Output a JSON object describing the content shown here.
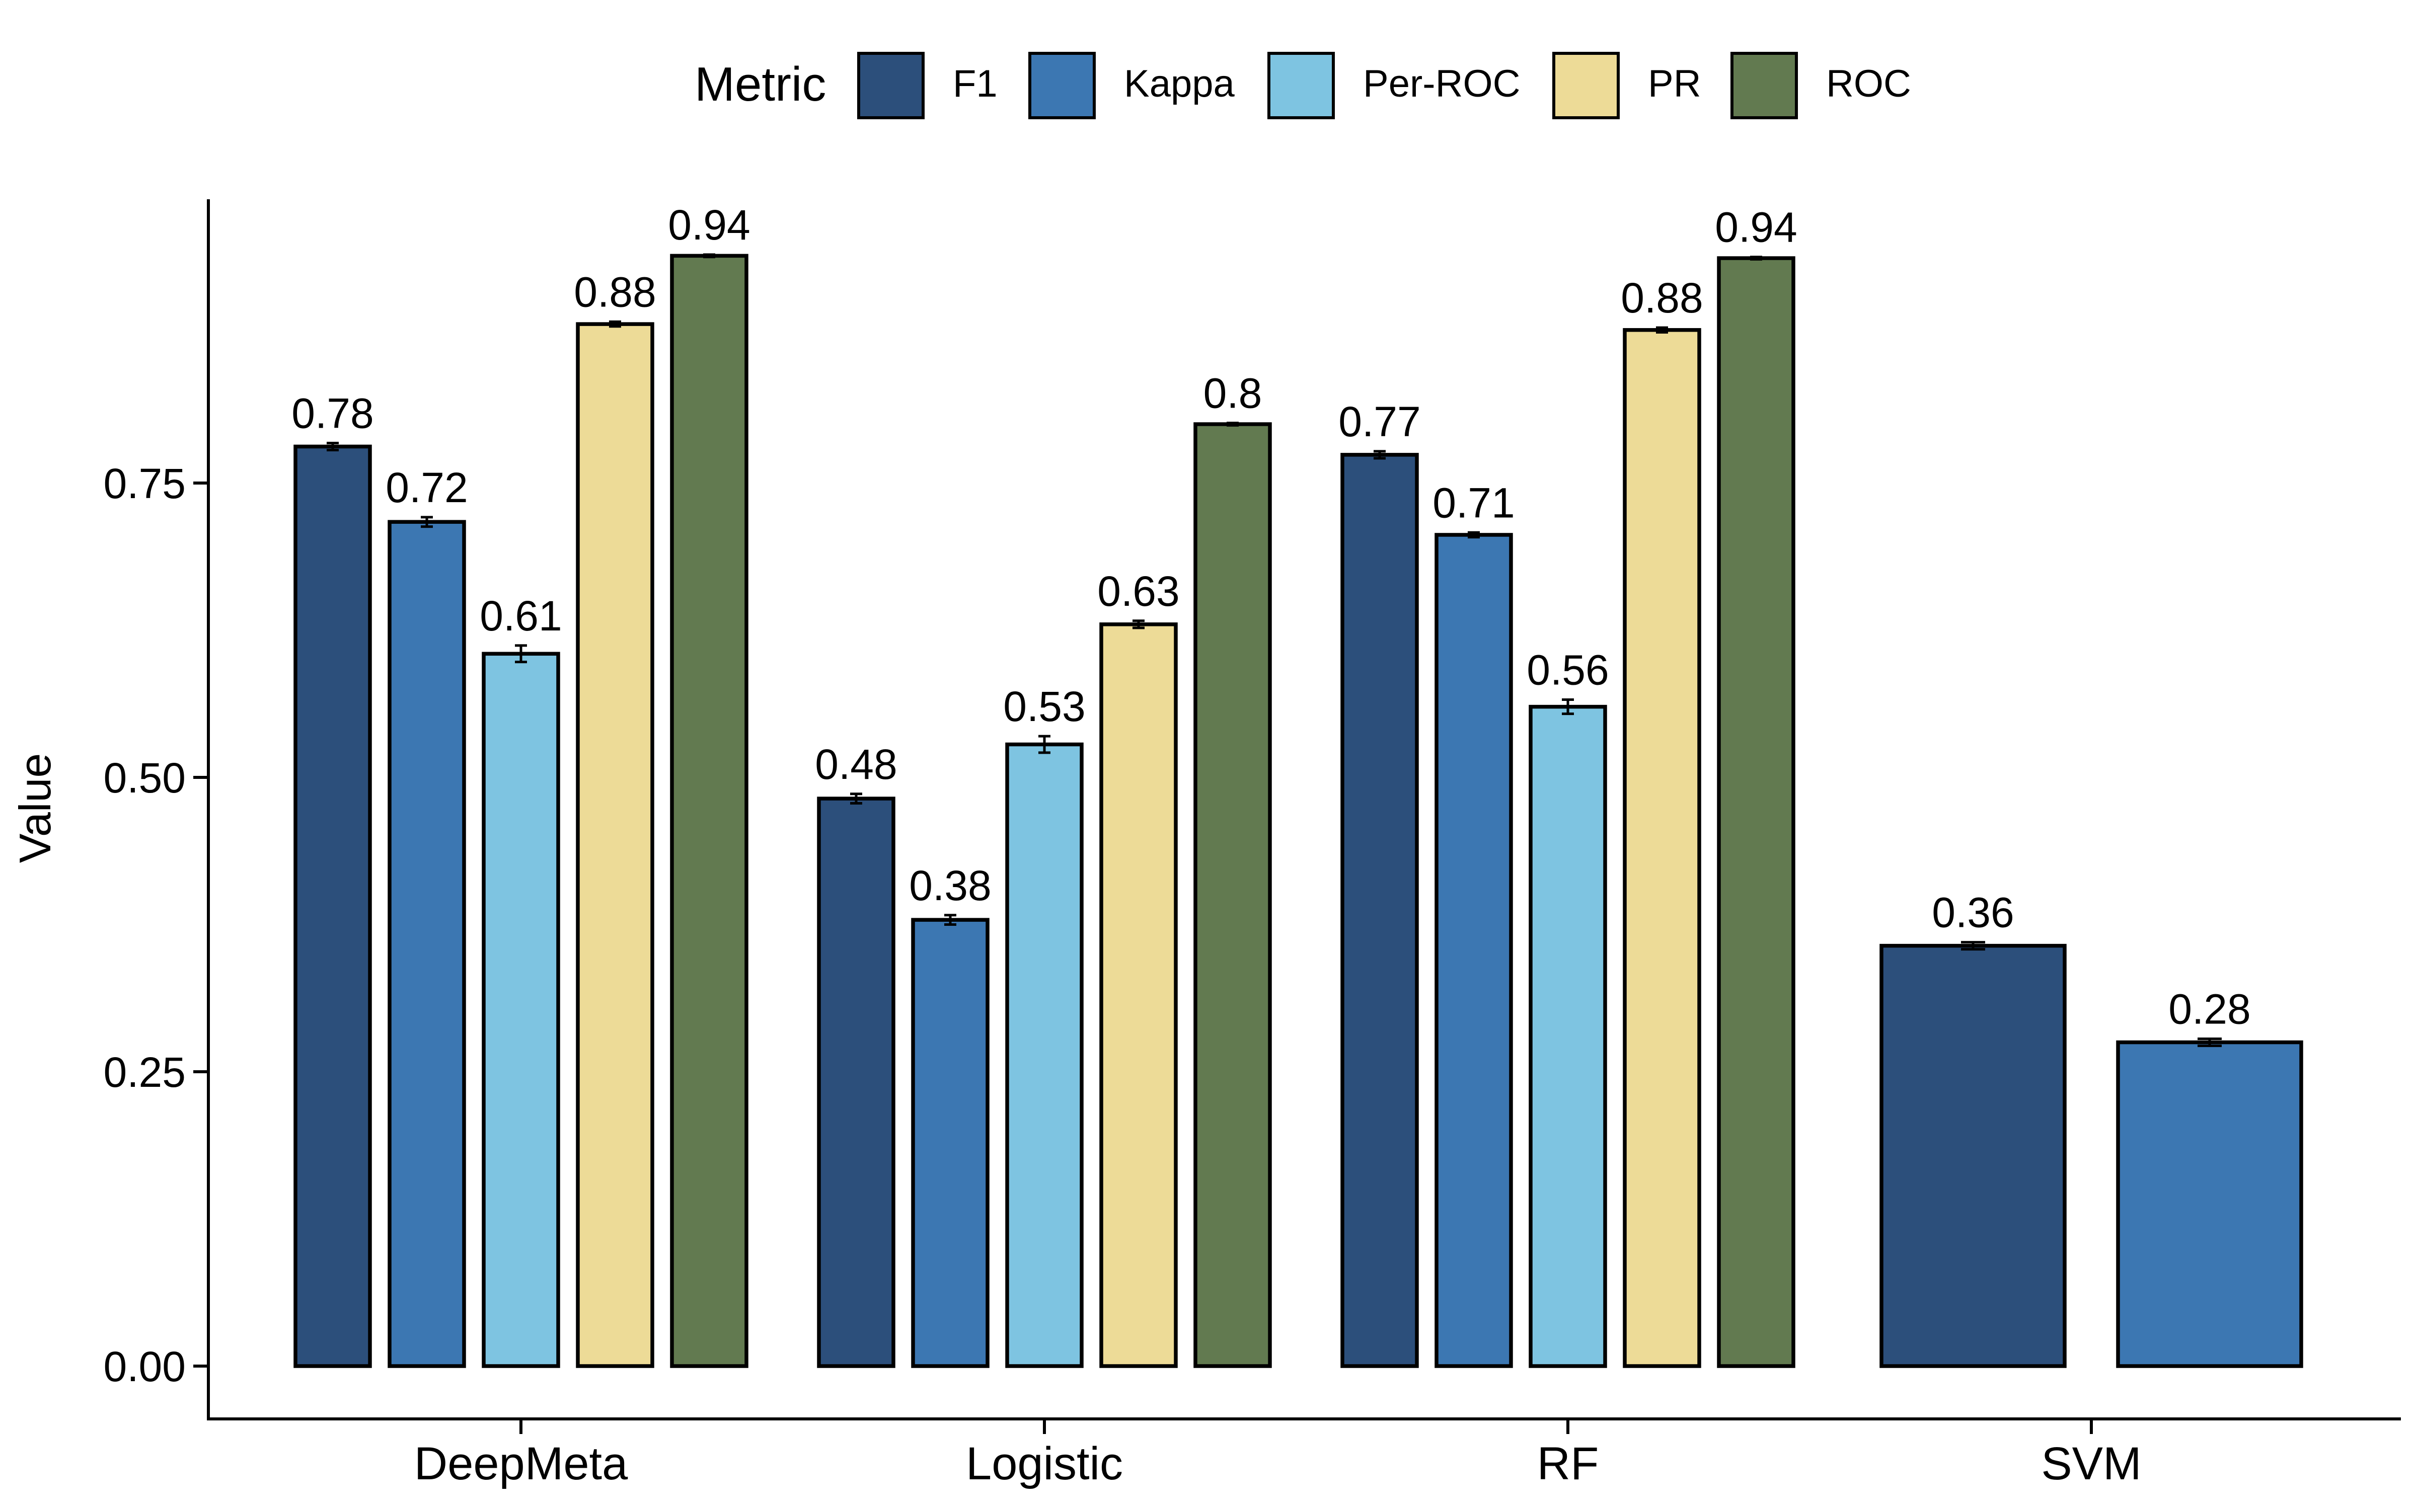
{
  "chart_data": {
    "type": "bar",
    "title": "",
    "xlabel": "",
    "ylabel": "Value",
    "ylim": [
      0,
      0.98
    ],
    "yticks": [
      0.0,
      0.25,
      0.5,
      0.75
    ],
    "ytick_labels": [
      "0.00",
      "0.25",
      "0.50",
      "0.75"
    ],
    "grid": false,
    "legend": {
      "title": "Metric",
      "position": "top",
      "entries": [
        "F1",
        "Kappa",
        "Per-ROC",
        "PR",
        "ROC"
      ]
    },
    "colors": {
      "F1": "#2c4f7b",
      "Kappa": "#3c77b2",
      "Per-ROC": "#7ec4e1",
      "PR": "#eddb97",
      "ROC": "#627a50"
    },
    "categories": [
      "DeepMeta",
      "Logistic",
      "RF",
      "SVM"
    ],
    "series": [
      {
        "name": "F1",
        "values": [
          0.781,
          0.482,
          0.774,
          0.357
        ],
        "errors": [
          0.003,
          0.004,
          0.003,
          0.003
        ],
        "labels": [
          "0.78",
          "0.48",
          "0.77",
          "0.36"
        ]
      },
      {
        "name": "Kappa",
        "values": [
          0.717,
          0.379,
          0.706,
          0.275
        ],
        "errors": [
          0.004,
          0.004,
          0.002,
          0.003
        ],
        "labels": [
          "0.72",
          "0.38",
          "0.71",
          "0.28"
        ]
      },
      {
        "name": "Per-ROC",
        "values": [
          0.605,
          0.528,
          0.56,
          null
        ],
        "errors": [
          0.007,
          0.007,
          0.006,
          null
        ],
        "labels": [
          "0.61",
          "0.53",
          "0.56",
          ""
        ]
      },
      {
        "name": "PR",
        "values": [
          0.885,
          0.63,
          0.88,
          null
        ],
        "errors": [
          0.002,
          0.003,
          0.002,
          null
        ],
        "labels": [
          "0.88",
          "0.63",
          "0.88",
          ""
        ]
      },
      {
        "name": "ROC",
        "values": [
          0.943,
          0.8,
          0.941,
          null
        ],
        "errors": [
          0.001,
          0.001,
          0.001,
          null
        ],
        "labels": [
          "0.94",
          "0.8",
          "0.94",
          ""
        ]
      }
    ]
  }
}
